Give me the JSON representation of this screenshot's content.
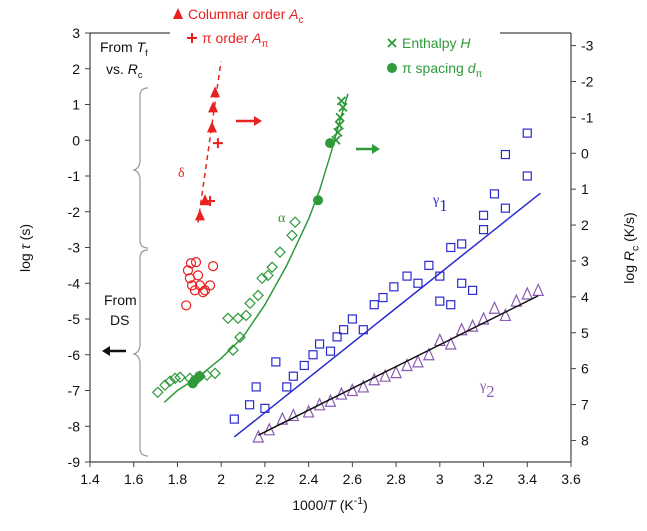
{
  "chart_data": {
    "type": "scatter",
    "xlabel": [
      {
        "t": "1000/"
      },
      {
        "t": "T",
        "style": "i"
      },
      {
        "t": " (K"
      },
      {
        "t": "-1",
        "style": "sup"
      },
      {
        "t": ")"
      }
    ],
    "ylabel": [
      {
        "t": "log "
      },
      {
        "t": "τ",
        "style": "i"
      },
      {
        "t": " (s)"
      }
    ],
    "y2label": [
      {
        "t": "log "
      },
      {
        "t": "R",
        "style": "i"
      },
      {
        "t": "c",
        "style": "sub"
      },
      {
        "t": " (K/s)"
      }
    ],
    "xlim": [
      1.4,
      3.6
    ],
    "xticks": [
      1.4,
      1.6,
      1.8,
      2,
      2.2,
      2.4,
      2.6,
      2.8,
      3,
      3.2,
      3.4,
      3.6
    ],
    "ylim": [
      -9,
      3
    ],
    "yticks": [
      -9,
      -8,
      -7,
      -6,
      -5,
      -4,
      -3,
      -2,
      -1,
      0,
      1,
      2,
      3
    ],
    "y2lim": [
      8.6,
      -3.35
    ],
    "y2ticks": [
      -3,
      -2,
      -1,
      0,
      1,
      2,
      3,
      4,
      5,
      6,
      7,
      8
    ],
    "grid": false,
    "series": [
      {
        "name": [
          {
            "t": "Columnar order "
          },
          {
            "t": "A",
            "style": "i"
          },
          {
            "t": "c",
            "style": "sub"
          }
        ],
        "marker": "triangle",
        "color": "#e8201e",
        "x": [
          1.972,
          1.963,
          1.958,
          1.926,
          1.903
        ],
        "values": [
          1.34,
          0.92,
          0.36,
          -1.68,
          -2.1
        ]
      },
      {
        "name": [
          {
            "t": "π order "
          },
          {
            "t": "A",
            "style": "i"
          },
          {
            "t": "π",
            "style": "sub"
          }
        ],
        "marker": "plus",
        "color": "#e8201e",
        "x": [
          1.985,
          1.949
        ],
        "values": [
          -0.08,
          -1.7
        ]
      },
      {
        "marker": "line",
        "dash": true,
        "color": "#e8201e",
        "x": [
          1.894,
          1.999
        ],
        "values": [
          -2.3,
          2.2
        ]
      },
      {
        "marker": "circle-open",
        "color": "#e8201e",
        "x": [
          1.848,
          1.862,
          1.857,
          1.867,
          1.88,
          1.894,
          1.903,
          1.926,
          1.949,
          1.84,
          1.963,
          1.885,
          1.917
        ],
        "values": [
          -3.64,
          -3.44,
          -3.86,
          -4.06,
          -4.2,
          -3.78,
          -4.06,
          -4.2,
          -4.06,
          -4.62,
          -3.52,
          -3.41,
          -4.25
        ]
      },
      {
        "name": [
          {
            "t": "Enthalpy "
          },
          {
            "t": "H",
            "style": "i"
          }
        ],
        "marker": "cross",
        "color": "#2e9a3a",
        "x": [
          2.557,
          2.544,
          2.54,
          2.534,
          2.525,
          2.55
        ],
        "values": [
          0.92,
          0.64,
          0.42,
          0.22,
          0,
          1.1
        ]
      },
      {
        "name": [
          {
            "t": "π spacing "
          },
          {
            "t": "d",
            "style": "i"
          },
          {
            "t": "π",
            "style": "sub"
          }
        ],
        "marker": "dot",
        "color": "#2e9a3a",
        "x": [
          2.498,
          2.443,
          1.88,
          1.9,
          1.87
        ],
        "values": [
          -0.08,
          -1.68,
          -6.71,
          -6.6,
          -6.8
        ]
      },
      {
        "marker": "diamond-open",
        "color": "#2e9a3a",
        "x": [
          1.71,
          1.743,
          1.766,
          1.789,
          1.812,
          1.857,
          1.903,
          1.935,
          1.972,
          2.054,
          2.086,
          2.031,
          2.077,
          2.114,
          2.132,
          2.169,
          2.187,
          2.214,
          2.233,
          2.269,
          2.324,
          2.338
        ],
        "values": [
          -7.05,
          -6.85,
          -6.74,
          -6.66,
          -6.63,
          -6.66,
          -6.6,
          -6.57,
          -6.52,
          -5.87,
          -5.51,
          -4.98,
          -4.98,
          -4.9,
          -4.56,
          -4.34,
          -3.86,
          -3.78,
          -3.55,
          -3.13,
          -2.66,
          -2.29
        ]
      },
      {
        "marker": "line",
        "color": "#2e9a3a",
        "x": [
          1.74,
          1.8,
          1.9,
          2.0,
          2.1,
          2.2,
          2.3,
          2.4,
          2.45,
          2.5,
          2.55,
          2.58
        ],
        "values": [
          -7.33,
          -7.0,
          -6.6,
          -6.1,
          -5.5,
          -4.6,
          -3.5,
          -2.2,
          -1.4,
          -0.4,
          0.7,
          1.3
        ]
      },
      {
        "marker": "square-open",
        "color": "#2a2ad0",
        "x": [
          2.06,
          2.13,
          2.2,
          2.16,
          2.25,
          2.3,
          2.33,
          2.38,
          2.42,
          2.45,
          2.5,
          2.53,
          2.56,
          2.6,
          2.65,
          2.7,
          2.74,
          2.79,
          2.85,
          2.9,
          2.95,
          3.0,
          3.0,
          3.05,
          3.05,
          3.1,
          3.1,
          3.15,
          3.2,
          3.2,
          3.25,
          3.3,
          3.3,
          3.4,
          3.4
        ],
        "values": [
          -7.8,
          -7.4,
          -7.5,
          -6.9,
          -6.2,
          -6.9,
          -6.6,
          -6.3,
          -6.0,
          -5.7,
          -5.9,
          -5.5,
          -5.3,
          -5.0,
          -5.3,
          -4.6,
          -4.4,
          -4.1,
          -3.8,
          -4.0,
          -3.5,
          -3.8,
          -4.5,
          -4.6,
          -3.0,
          -4.0,
          -2.9,
          -4.2,
          -2.5,
          -2.1,
          -1.5,
          -0.4,
          -1.9,
          0.2,
          -1.0
        ]
      },
      {
        "marker": "line",
        "color": "#2a2ad0",
        "x": [
          2.06,
          3.46
        ],
        "values": [
          -8.3,
          -1.48
        ]
      },
      {
        "marker": "triangle-open",
        "color": "#8a5bb0",
        "x": [
          2.17,
          2.22,
          2.28,
          2.33,
          2.4,
          2.45,
          2.5,
          2.55,
          2.6,
          2.65,
          2.7,
          2.75,
          2.8,
          2.85,
          2.9,
          2.95,
          3.0,
          3.05,
          3.1,
          3.15,
          3.2,
          3.25,
          3.3,
          3.35,
          3.4,
          3.45
        ],
        "values": [
          -8.3,
          -8.1,
          -7.8,
          -7.7,
          -7.6,
          -7.4,
          -7.3,
          -7.1,
          -7.0,
          -6.9,
          -6.7,
          -6.6,
          -6.5,
          -6.3,
          -6.2,
          -6.0,
          -5.6,
          -5.7,
          -5.3,
          -5.2,
          -5.0,
          -4.7,
          -4.9,
          -4.5,
          -4.3,
          -4.2
        ]
      },
      {
        "marker": "line",
        "color": "#111111",
        "x": [
          2.17,
          3.45
        ],
        "values": [
          -8.25,
          -4.35
        ]
      }
    ],
    "annotations": [
      {
        "text": [
          {
            "t": "From "
          },
          {
            "t": "T",
            "style": "i"
          },
          {
            "t": "f",
            "style": "sub"
          }
        ],
        "color": "#111111"
      },
      {
        "text": [
          {
            "t": "vs. "
          },
          {
            "t": "R",
            "style": "i"
          },
          {
            "t": "c",
            "style": "sub"
          }
        ],
        "color": "#111111"
      },
      {
        "text": [
          {
            "t": "From"
          }
        ],
        "color": "#111111"
      },
      {
        "text": [
          {
            "t": "DS"
          }
        ],
        "color": "#111111"
      },
      {
        "text": [
          {
            "t": "δ"
          }
        ],
        "color": "#e8201e"
      },
      {
        "text": [
          {
            "t": "α"
          }
        ],
        "color": "#2e9a3a"
      },
      {
        "text": [
          {
            "t": "γ"
          },
          {
            "t": "1",
            "style": "sub"
          }
        ],
        "color": "#2a2ad0"
      },
      {
        "text": [
          {
            "t": "γ"
          },
          {
            "t": "2",
            "style": "sub"
          }
        ],
        "color": "#8a5bb0"
      }
    ]
  }
}
